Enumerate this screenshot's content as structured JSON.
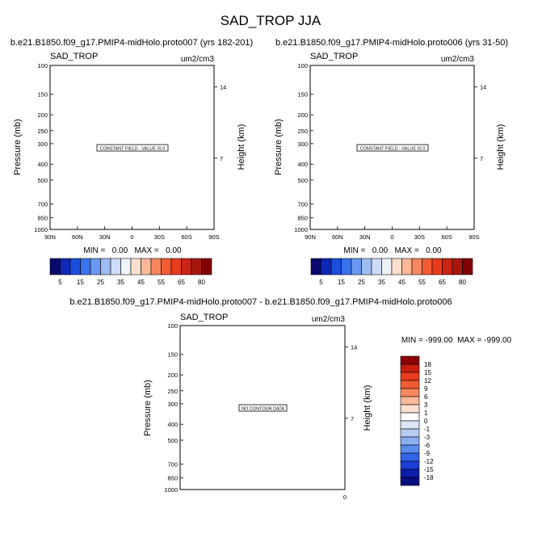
{
  "page": {
    "title": "SAD_TROP JJA"
  },
  "panels": [
    {
      "heading": "b.e21.B1850.f09_g17.PMIP4-midHolo.proto007 (yrs 182-201)",
      "variable": "SAD_TROP",
      "units": "um2/cm3",
      "message": "CONSTANT FIELD - VALUE IS 0",
      "minmax": "MIN =   0.00   MAX =   0.00",
      "y_label": "Pressure (mb)",
      "right_label": "Height (km)",
      "y_ticks": [
        "100",
        "150",
        "200",
        "250",
        "300",
        "400",
        "500",
        "700",
        "850",
        "1000"
      ],
      "right_ticks": [
        "14",
        "7"
      ],
      "x_ticks": [
        "90N",
        "60N",
        "30N",
        "0",
        "30S",
        "60S",
        "90S"
      ]
    },
    {
      "heading": "b.e21.B1850.f09_g17.PMIP4-midHolo.proto006 (yrs 31-50)",
      "variable": "SAD_TROP",
      "units": "um2/cm3",
      "message": "CONSTANT FIELD - VALUE IS 0",
      "minmax": "MIN =   0.00   MAX =   0.00",
      "y_label": "Pressure (mb)",
      "right_label": "Height (km)",
      "y_ticks": [
        "100",
        "150",
        "200",
        "250",
        "300",
        "400",
        "500",
        "700",
        "850",
        "1000"
      ],
      "right_ticks": [
        "14",
        "7"
      ],
      "x_ticks": [
        "90N",
        "60N",
        "30N",
        "0",
        "30S",
        "60S",
        "90S"
      ]
    },
    {
      "heading": "b.e21.B1850.f09_g17.PMIP4-midHolo.proto007 - b.e21.B1850.f09_g17.PMIP4-midHolo.proto006",
      "variable": "SAD_TROP",
      "units": "um2/cm3",
      "message": "NO CONTOUR DATA",
      "minmax": "MIN = -999.00  MAX = -999.00",
      "y_label": "Pressure (mb)",
      "right_label": "Height (km)",
      "y_ticks": [
        "100",
        "150",
        "200",
        "250",
        "300",
        "400",
        "500",
        "700",
        "850",
        "1000"
      ],
      "right_ticks": [
        "14",
        "7"
      ],
      "x_ticks": [
        "0"
      ]
    }
  ],
  "colorbar_top": {
    "labels": [
      "5",
      "15",
      "25",
      "35",
      "45",
      "55",
      "65",
      "80"
    ],
    "colors": [
      "#08086e",
      "#1028b8",
      "#1c4edc",
      "#3a73ee",
      "#6a98f2",
      "#9dbdf5",
      "#cddcf7",
      "#eef3f8",
      "#fde0d0",
      "#fbb897",
      "#f8875f",
      "#f25c33",
      "#e83c1c",
      "#cc2414",
      "#a8170e",
      "#800000"
    ]
  },
  "colorbar_diff": {
    "labels": [
      "18",
      "15",
      "12",
      "9",
      "6",
      "3",
      "1",
      "0",
      "-1",
      "-3",
      "-6",
      "-9",
      "-12",
      "-15",
      "-18"
    ],
    "colors": [
      "#8b0000",
      "#c81e10",
      "#e83c1c",
      "#f25c33",
      "#f8875f",
      "#fbb897",
      "#fde0d0",
      "#ffffff",
      "#dde6f8",
      "#b5ccf3",
      "#8aaef0",
      "#5a8cee",
      "#2f64e6",
      "#1a3ed6",
      "#0a1fa8",
      "#050f80"
    ]
  },
  "chart_data": [
    {
      "type": "heatmap",
      "title": "b.e21.B1850.f09_g17.PMIP4-midHolo.proto007 (yrs 182-201)",
      "xlabel": "",
      "ylabel": "Pressure (mb)",
      "x_ticks": [
        "90N",
        "60N",
        "30N",
        "0",
        "30S",
        "60S",
        "90S"
      ],
      "y_ticks": [
        100,
        150,
        200,
        250,
        300,
        400,
        500,
        700,
        850,
        1000
      ],
      "y_scale": "log",
      "y_reversed": true,
      "right_axis": {
        "label": "Height (km)",
        "ticks": [
          14,
          7
        ]
      },
      "values": "constant field",
      "min": 0.0,
      "max": 0.0,
      "colorbar_levels": [
        5,
        15,
        25,
        35,
        45,
        55,
        65,
        80
      ]
    },
    {
      "type": "heatmap",
      "title": "b.e21.B1850.f09_g17.PMIP4-midHolo.proto006 (yrs 31-50)",
      "xlabel": "",
      "ylabel": "Pressure (mb)",
      "x_ticks": [
        "90N",
        "60N",
        "30N",
        "0",
        "30S",
        "60S",
        "90S"
      ],
      "y_ticks": [
        100,
        150,
        200,
        250,
        300,
        400,
        500,
        700,
        850,
        1000
      ],
      "y_scale": "log",
      "y_reversed": true,
      "right_axis": {
        "label": "Height (km)",
        "ticks": [
          14,
          7
        ]
      },
      "values": "constant field",
      "min": 0.0,
      "max": 0.0,
      "colorbar_levels": [
        5,
        15,
        25,
        35,
        45,
        55,
        65,
        80
      ]
    },
    {
      "type": "heatmap",
      "title": "b.e21.B1850.f09_g17.PMIP4-midHolo.proto007 - b.e21.B1850.f09_g17.PMIP4-midHolo.proto006",
      "xlabel": "",
      "ylabel": "Pressure (mb)",
      "x_ticks": [
        "0"
      ],
      "y_ticks": [
        100,
        150,
        200,
        250,
        300,
        400,
        500,
        700,
        850,
        1000
      ],
      "y_scale": "log",
      "y_reversed": true,
      "right_axis": {
        "label": "Height (km)",
        "ticks": [
          14,
          7
        ]
      },
      "values": "no contour data",
      "min": -999.0,
      "max": -999.0,
      "colorbar_levels": [
        18,
        15,
        12,
        9,
        6,
        3,
        1,
        0,
        -1,
        -3,
        -6,
        -9,
        -12,
        -15,
        -18
      ]
    }
  ]
}
